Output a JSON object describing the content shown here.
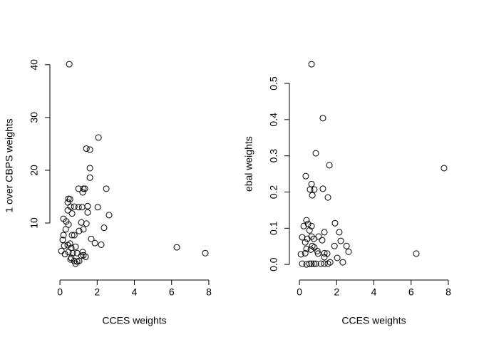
{
  "chart_data": [
    {
      "type": "scatter",
      "x_label": "CCES weights",
      "y_label": "1 over CBPS weights",
      "color": "#000000",
      "xlim": [
        -0.54,
        8.3
      ],
      "ylim": [
        -0.8,
        42
      ],
      "xticks": [
        0,
        2,
        4,
        6,
        8
      ],
      "yticks": [
        10,
        20,
        30,
        40
      ],
      "x": [
        0.5,
        0.46,
        0.54,
        0.42,
        0.42,
        0.57,
        2.07,
        1.42,
        1.61,
        1.61,
        1.61,
        2.49,
        1.0,
        1.26,
        1.34,
        1.22,
        0.77,
        1.0,
        1.19,
        1.49,
        2.03,
        1.49,
        2.64,
        0.65,
        0.19,
        0.34,
        0.46,
        1.15,
        1.42,
        2.37,
        1.03,
        0.31,
        1.26,
        0.19,
        0.65,
        0.77,
        0.15,
        1.68,
        0.23,
        0.42,
        0.54,
        0.84,
        0.61,
        1.88,
        2.22,
        6.28,
        7.81,
        0.08,
        0.27,
        0.46,
        0.69,
        0.92,
        1.22,
        1.26,
        1.38,
        0.57,
        0.77,
        0.92,
        1.03,
        0.61,
        0.84,
        1.15
      ],
      "values": [
        40.1,
        14.6,
        14.5,
        13.9,
        12.4,
        13.1,
        26.2,
        24.1,
        23.9,
        20.4,
        18.6,
        16.5,
        16.5,
        16.5,
        16.5,
        15.8,
        13.1,
        13.0,
        13.0,
        13.2,
        13.0,
        12.0,
        11.5,
        11.8,
        10.8,
        10.3,
        9.7,
        10.1,
        9.9,
        9.1,
        8.5,
        8.8,
        8.8,
        7.7,
        7.7,
        7.7,
        6.8,
        7.0,
        5.7,
        5.8,
        6.1,
        5.5,
        5.3,
        6.2,
        5.9,
        5.4,
        4.3,
        4.7,
        4.1,
        4.5,
        4.3,
        4.3,
        4.5,
        3.9,
        3.6,
        3.1,
        2.8,
        2.7,
        2.8,
        3.4,
        2.3,
        3.8
      ]
    },
    {
      "type": "scatter",
      "x_label": "CCES weights",
      "y_label": "ebal weights",
      "color": "#000000",
      "xlim": [
        -0.54,
        8.3
      ],
      "ylim": [
        -0.043,
        0.59
      ],
      "xticks": [
        0,
        2,
        4,
        6,
        8
      ],
      "yticks": [
        {
          "value": 0,
          "label": "0.0"
        },
        0.1,
        0.2,
        0.3,
        0.4,
        0.5
      ],
      "x": [
        0.65,
        1.26,
        0.88,
        1.61,
        0.34,
        7.77,
        0.65,
        0.57,
        0.8,
        1.26,
        0.69,
        1.53,
        0.38,
        0.46,
        0.23,
        0.65,
        0.54,
        1.34,
        2.14,
        1.91,
        0.15,
        0.42,
        0.65,
        0.77,
        1.03,
        0.31,
        1.22,
        0.69,
        2.22,
        2.53,
        1.88,
        0.38,
        0.61,
        0.8,
        0.96,
        0.08,
        0.31,
        1.0,
        1.34,
        1.49,
        2.64,
        6.28,
        2.03,
        0.15,
        0.38,
        0.54,
        0.65,
        0.77,
        0.88,
        1.15,
        1.34,
        1.53,
        1.65,
        2.33,
        1.34
      ],
      "values": [
        0.553,
        0.404,
        0.307,
        0.274,
        0.244,
        0.266,
        0.222,
        0.207,
        0.207,
        0.209,
        0.191,
        0.185,
        0.122,
        0.112,
        0.106,
        0.106,
        0.094,
        0.089,
        0.089,
        0.114,
        0.075,
        0.071,
        0.077,
        0.071,
        0.077,
        0.061,
        0.067,
        0.051,
        0.065,
        0.051,
        0.051,
        0.043,
        0.041,
        0.047,
        0.037,
        0.028,
        0.031,
        0.03,
        0.031,
        0.03,
        0.035,
        0.03,
        0.018,
        0.002,
        0,
        0.002,
        0.002,
        0.002,
        0.002,
        0.002,
        0.002,
        0.002,
        0.006,
        0.006,
        0.02
      ]
    }
  ]
}
